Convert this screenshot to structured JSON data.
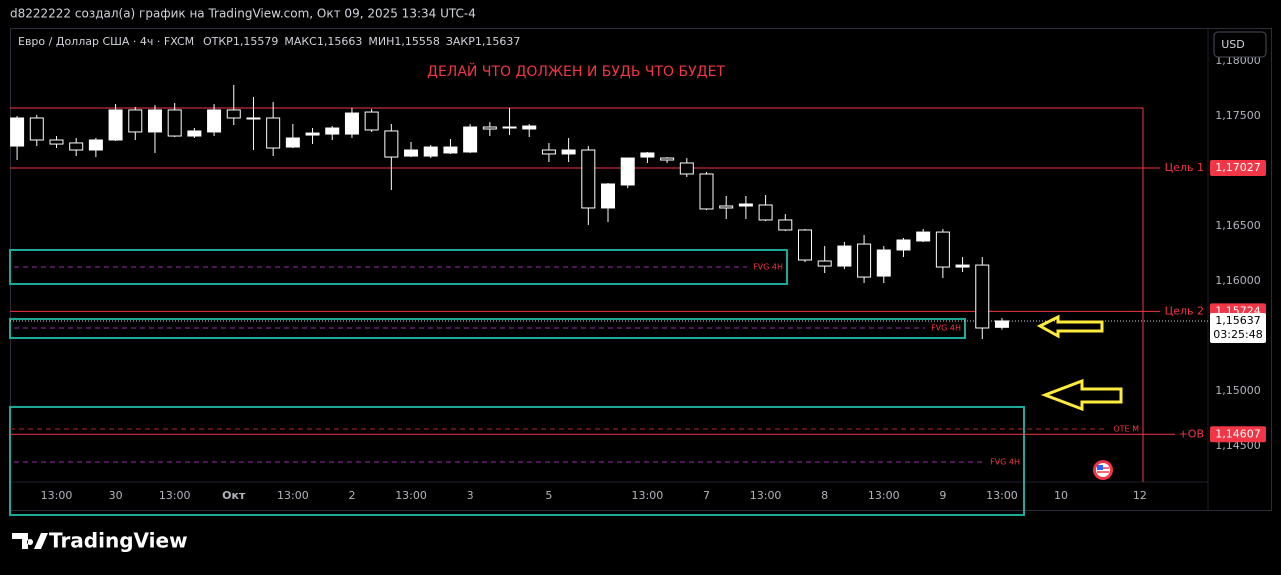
{
  "header": {
    "attribution": "d8222222 создал(а) график на TradingView.com, Окт 09, 2025 13:34 UTC-4"
  },
  "chart_data": {
    "type": "candlestick",
    "title": "Евро / Доллар США · 4ч · FXCM",
    "legend": [
      {
        "label": "ОТКР",
        "value": "1,15579"
      },
      {
        "label": "МАКС",
        "value": "1,15663"
      },
      {
        "label": "МИН",
        "value": "1,15558"
      },
      {
        "label": "ЗАКР",
        "value": "1,15637"
      }
    ],
    "annotation": "ДЕЛАЙ ЧТО ДОЛЖЕН И БУДЬ ЧТО БУДЕТ",
    "currency": "USD",
    "x": [
      0,
      1,
      2,
      3,
      4,
      5,
      6,
      7,
      8,
      9,
      10,
      11,
      12,
      13,
      14,
      15,
      16,
      17,
      18,
      19,
      20,
      21,
      22,
      23,
      24,
      25,
      26,
      27,
      28,
      29,
      30,
      31,
      32,
      33,
      34,
      35,
      36,
      37,
      38,
      39,
      40,
      41,
      42,
      43,
      44,
      45,
      46,
      47,
      48,
      49,
      50
    ],
    "open": [
      1.17227,
      1.17482,
      1.17282,
      1.17255,
      1.17191,
      1.17282,
      1.17555,
      1.17355,
      1.17555,
      1.17318,
      1.17355,
      1.17555,
      1.17482,
      1.17482,
      1.17218,
      1.17327,
      1.17336,
      1.17336,
      1.17536,
      1.17364,
      1.17136,
      1.17136,
      1.17164,
      1.17173,
      1.174,
      1.17391,
      1.17382,
      1.17191,
      1.17155,
      1.17191,
      1.16664,
      1.16873,
      1.17127,
      1.17118,
      1.17073,
      1.16973,
      1.16682,
      1.16682,
      1.16691,
      1.16555,
      1.16464,
      1.16182,
      1.16136,
      1.16336,
      1.16045,
      1.16282,
      1.16364,
      1.16445,
      1.16127,
      1.16145,
      1.15579
    ],
    "high": [
      1.175,
      1.17509,
      1.17318,
      1.173,
      1.173,
      1.17609,
      1.17582,
      1.176,
      1.17618,
      1.17391,
      1.17609,
      1.17782,
      1.17673,
      1.17627,
      1.17427,
      1.17391,
      1.17409,
      1.17573,
      1.17564,
      1.17427,
      1.17264,
      1.17236,
      1.17291,
      1.17427,
      1.17445,
      1.17573,
      1.17427,
      1.17255,
      1.173,
      1.17227,
      1.16891,
      1.17118,
      1.17173,
      1.17127,
      1.17118,
      1.16991,
      1.16773,
      1.16773,
      1.16782,
      1.16609,
      1.16473,
      1.16318,
      1.16355,
      1.16418,
      1.16318,
      1.16391,
      1.16473,
      1.16473,
      1.16218,
      1.16218,
      1.15663
    ],
    "low": [
      1.171,
      1.17227,
      1.17209,
      1.17136,
      1.17127,
      1.17273,
      1.17282,
      1.17164,
      1.17309,
      1.173,
      1.17318,
      1.17418,
      1.17191,
      1.17136,
      1.17209,
      1.17245,
      1.17282,
      1.173,
      1.17355,
      1.16827,
      1.17127,
      1.17118,
      1.17155,
      1.17164,
      1.17318,
      1.17327,
      1.17309,
      1.17082,
      1.17082,
      1.16509,
      1.16536,
      1.16845,
      1.17073,
      1.17073,
      1.16945,
      1.16645,
      1.16564,
      1.16564,
      1.16545,
      1.16455,
      1.16173,
      1.16073,
      1.16109,
      1.15982,
      1.15982,
      1.16218,
      1.16355,
      1.16027,
      1.16082,
      1.15473,
      1.15558
    ],
    "close": [
      1.17482,
      1.17282,
      1.17245,
      1.17191,
      1.17282,
      1.17555,
      1.17355,
      1.17555,
      1.17318,
      1.17364,
      1.17555,
      1.17482,
      1.17473,
      1.17209,
      1.173,
      1.17345,
      1.17391,
      1.17527,
      1.17373,
      1.17127,
      1.17191,
      1.17218,
      1.17218,
      1.174,
      1.17382,
      1.174,
      1.17409,
      1.17155,
      1.17191,
      1.16664,
      1.16882,
      1.17118,
      1.17164,
      1.171,
      1.16973,
      1.16655,
      1.16664,
      1.167,
      1.16555,
      1.16464,
      1.16191,
      1.16136,
      1.16318,
      1.16036,
      1.16282,
      1.16373,
      1.16445,
      1.16127,
      1.16145,
      1.15573,
      1.15637
    ],
    "up_color": "#ffffff",
    "down_color": "#000000",
    "xlim": [
      -0.36,
      60.46
    ],
    "xticks": [
      {
        "value": 2,
        "label": "13:00"
      },
      {
        "value": 5,
        "label": "30"
      },
      {
        "value": 8,
        "label": "13:00"
      },
      {
        "value": 11,
        "label": "Окт"
      },
      {
        "value": 14,
        "label": "13:00"
      },
      {
        "value": 17,
        "label": "2"
      },
      {
        "value": 20,
        "label": "13:00"
      },
      {
        "value": 23,
        "label": "3"
      },
      {
        "value": 27,
        "label": "5"
      },
      {
        "value": 32,
        "label": "13:00"
      },
      {
        "value": 35,
        "label": "7"
      },
      {
        "value": 38,
        "label": "13:00"
      },
      {
        "value": 41,
        "label": "8"
      },
      {
        "value": 44,
        "label": "13:00"
      },
      {
        "value": 47,
        "label": "9"
      },
      {
        "value": 50,
        "label": "13:00"
      },
      {
        "value": 53,
        "label": "10"
      },
      {
        "value": 57,
        "label": "12"
      }
    ],
    "ylim": [
      1.14173,
      1.183
    ],
    "yticks": [
      {
        "value": 1.18,
        "label": "1,18000"
      },
      {
        "value": 1.175,
        "label": "1,17500"
      },
      {
        "value": 1.165,
        "label": "1,16500"
      },
      {
        "value": 1.16,
        "label": "1,16000"
      },
      {
        "value": 1.15,
        "label": "1,15000"
      },
      {
        "value": 1.145,
        "label": "1,14500"
      }
    ],
    "last_price": {
      "value": 1.15637,
      "label": "1,15637",
      "countdown": "03:25:48"
    },
    "target_zone": {
      "top": 1.17573,
      "color": "#f23645"
    },
    "levels": [
      {
        "name": "Цель 1",
        "value": 1.17027,
        "label": "1,17027"
      },
      {
        "name": "Цель 2",
        "value": 1.15724,
        "label": "1,15724"
      },
      {
        "name": "+OB",
        "value": 1.14607,
        "label": "1,14607"
      }
    ],
    "zones": [
      {
        "label": "FVG 4H",
        "top": 1.16282,
        "bottom": 1.15973,
        "mid": 1.16127
      },
      {
        "label": "FVG 4H",
        "top": 1.15655,
        "bottom": 1.15482,
        "mid": 1.15573
      },
      {
        "label": "FVG 4H",
        "top": 1.14855,
        "bottom": 1.13873,
        "mid": 1.14355
      }
    ],
    "zone_color": "#1fa99a",
    "zone_line_color": "#9c27b0",
    "lines": [
      {
        "label": "OTE M",
        "value": 1.14655,
        "color": "#b22833"
      }
    ]
  },
  "footer": {
    "brand": "TradingView"
  }
}
